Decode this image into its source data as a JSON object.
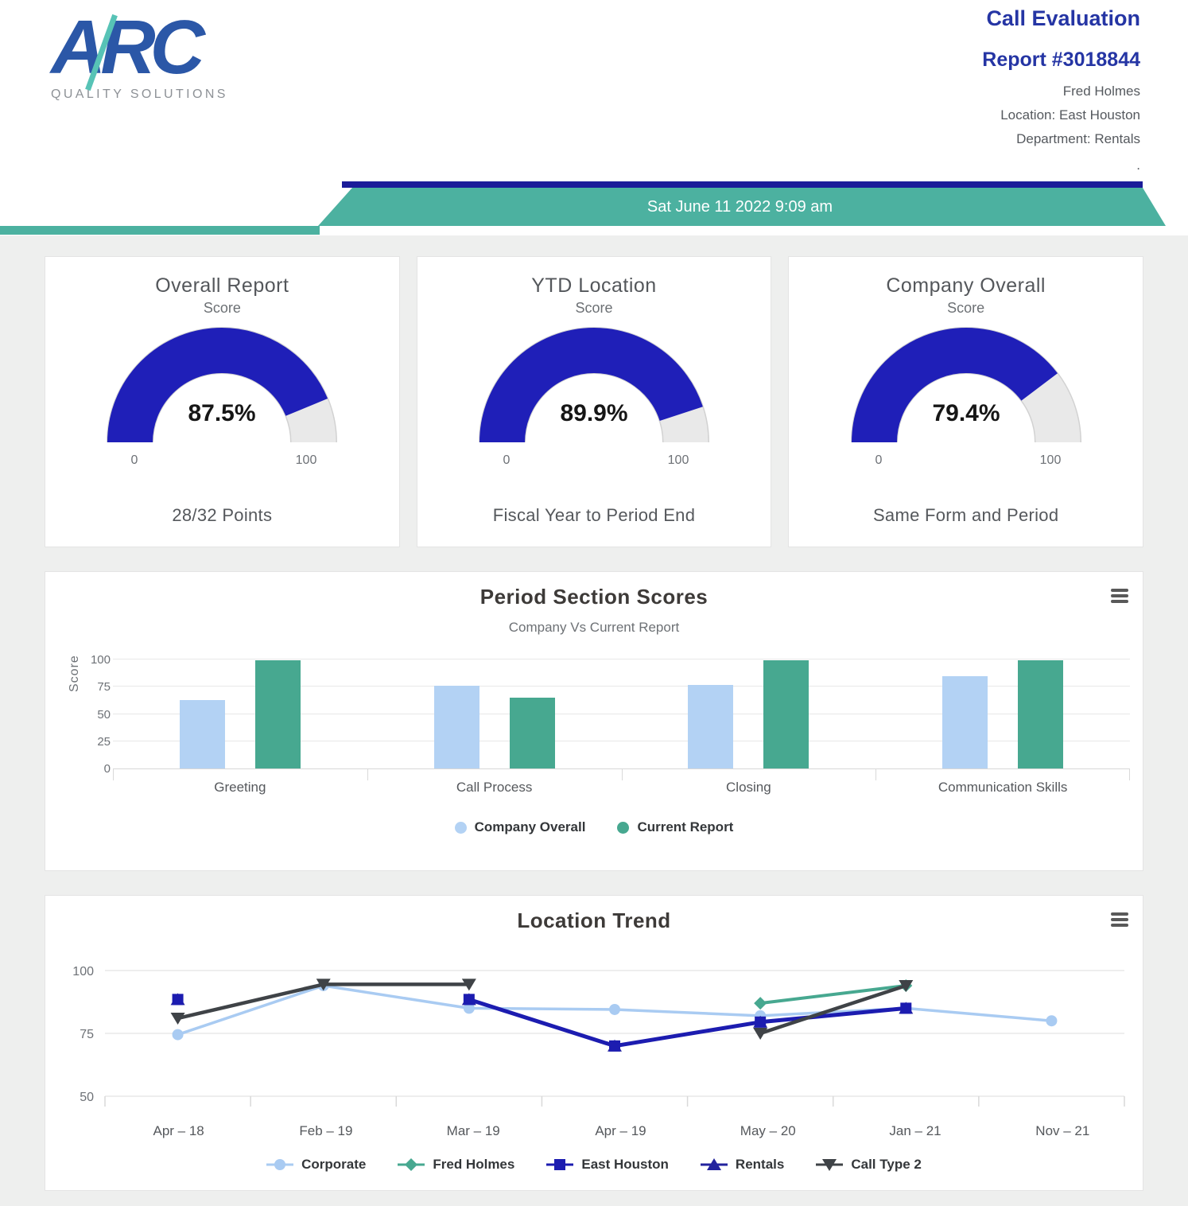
{
  "logo": {
    "text": "ARC",
    "tagline": "QUALITY SOLUTIONS"
  },
  "header": {
    "title": "Call Evaluation",
    "report": "Report #3018844",
    "agent": "Fred Holmes",
    "location": "Location: East Houston",
    "department": "Department: Rentals",
    "dot": ".",
    "banner_datetime": "Sat June 11 2022 9:09 am"
  },
  "colors": {
    "header_blue": "#2535a4",
    "banner_navy": "#1b1c99",
    "banner_teal": "#4cb1a0",
    "gauge_blue": "#1f1fb8",
    "gauge_track": "#e9e9e9",
    "bar_light_blue": "#b3d2f4",
    "bar_teal": "#47a890"
  },
  "gauges": [
    {
      "title": "Overall Report",
      "subtitle": "Score",
      "value": 87.5,
      "value_label": "87.5%",
      "min_label": "0",
      "max_label": "100",
      "footer": "28/32 Points"
    },
    {
      "title": "YTD Location",
      "subtitle": "Score",
      "value": 89.9,
      "value_label": "89.9%",
      "min_label": "0",
      "max_label": "100",
      "footer": "Fiscal Year to Period End"
    },
    {
      "title": "Company Overall",
      "subtitle": "Score",
      "value": 79.4,
      "value_label": "79.4%",
      "min_label": "0",
      "max_label": "100",
      "footer": "Same Form and Period"
    }
  ],
  "chart_data": [
    {
      "type": "bar",
      "title": "Period Section Scores",
      "subtitle": "Company Vs Current Report",
      "xlabel": "",
      "ylabel": "Score",
      "ylim": [
        0,
        100
      ],
      "yticks": [
        100,
        75,
        50,
        25,
        0
      ],
      "grid": true,
      "legend_position": "bottom",
      "categories": [
        "Greeting",
        "Call Process",
        "Closing",
        "Communication Skills"
      ],
      "series": [
        {
          "name": "Company Overall",
          "color": "#b3d2f4",
          "values": [
            63,
            76,
            77,
            85
          ]
        },
        {
          "name": "Current Report",
          "color": "#47a890",
          "values": [
            99,
            65,
            99,
            99
          ]
        }
      ]
    },
    {
      "type": "line",
      "title": "Location Trend",
      "xlabel": "",
      "ylabel": "",
      "ylim": [
        50,
        105
      ],
      "yticks": [
        100,
        75,
        50
      ],
      "grid": true,
      "legend_position": "bottom",
      "categories": [
        "Apr – 18",
        "Feb – 19",
        "Mar – 19",
        "Apr – 19",
        "May – 20",
        "Jan – 21",
        "Nov – 21"
      ],
      "series": [
        {
          "name": "Corporate",
          "color": "#a9cbf2",
          "marker": "circle",
          "line_width": 3.5,
          "values": [
            74.5,
            94,
            85,
            84.5,
            82,
            85,
            80
          ]
        },
        {
          "name": "Fred Holmes",
          "color": "#47a890",
          "marker": "diamond",
          "line_width": 4,
          "values": [
            null,
            null,
            null,
            null,
            87,
            94,
            null
          ]
        },
        {
          "name": "East Houston",
          "color": "#1c1cb0",
          "marker": "square",
          "line_width": 5,
          "values": [
            88.5,
            null,
            88.5,
            70,
            79.5,
            85,
            null
          ]
        },
        {
          "name": "Rentals",
          "color": "#23239e",
          "marker": "triangle-up",
          "line_width": 4,
          "values": [
            88.5,
            null,
            88.5,
            70,
            79.5,
            85,
            null
          ]
        },
        {
          "name": "Call Type 2",
          "color": "#3f4347",
          "marker": "triangle-down",
          "line_width": 4.5,
          "values": [
            81,
            94.5,
            94.5,
            null,
            75,
            94,
            null
          ]
        }
      ],
      "draw_order": [
        0,
        1,
        3,
        2,
        4
      ]
    }
  ]
}
